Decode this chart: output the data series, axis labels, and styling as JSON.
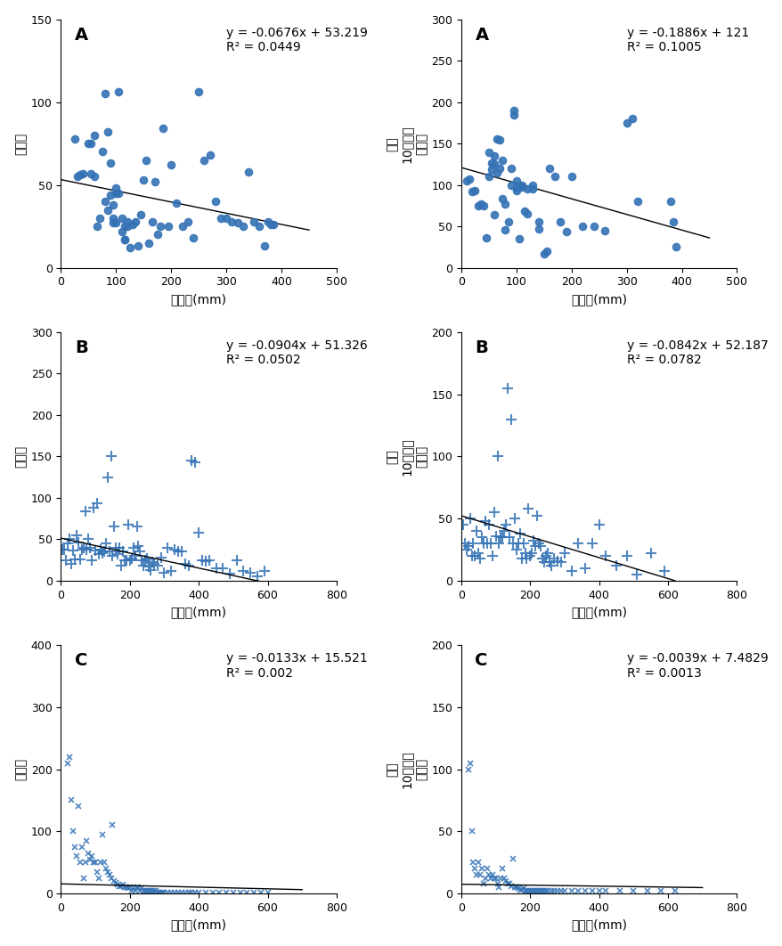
{
  "panels": [
    {
      "label": "A",
      "row": 0,
      "col": 0,
      "equation": "y = -0.0676x + 53.219",
      "r2": "R² = 0.0449",
      "slope": -0.0676,
      "intercept": 53.219,
      "xlim": [
        0,
        500
      ],
      "ylim": [
        0,
        150
      ],
      "xticks": [
        0,
        100,
        200,
        300,
        400,
        500
      ],
      "yticks": [
        0,
        50,
        100,
        150
      ],
      "xlabel": "강수량(mm)",
      "ylabel": "발생수",
      "marker": "o",
      "x_line_start": 0,
      "x_line_end": 450,
      "scatter_x": [
        25,
        30,
        35,
        40,
        50,
        55,
        55,
        60,
        60,
        65,
        70,
        75,
        80,
        80,
        85,
        85,
        90,
        90,
        95,
        95,
        95,
        100,
        100,
        100,
        105,
        105,
        110,
        110,
        115,
        115,
        115,
        120,
        120,
        125,
        130,
        135,
        140,
        145,
        150,
        155,
        160,
        165,
        170,
        175,
        180,
        185,
        195,
        200,
        210,
        220,
        230,
        240,
        250,
        260,
        270,
        280,
        290,
        300,
        310,
        320,
        330,
        340,
        350,
        360,
        370,
        375,
        380,
        385
      ],
      "scatter_y": [
        78,
        55,
        56,
        57,
        75,
        75,
        57,
        55,
        80,
        25,
        30,
        70,
        105,
        40,
        35,
        82,
        44,
        63,
        38,
        30,
        27,
        45,
        48,
        27,
        106,
        45,
        22,
        30,
        17,
        25,
        17,
        28,
        25,
        12,
        26,
        28,
        13,
        32,
        53,
        65,
        15,
        28,
        52,
        20,
        25,
        84,
        25,
        62,
        39,
        25,
        28,
        18,
        106,
        65,
        68,
        40,
        30,
        30,
        28,
        27,
        25,
        58,
        28,
        25,
        13,
        28,
        26,
        26
      ]
    },
    {
      "label": "A",
      "row": 0,
      "col": 1,
      "equation": "y = -0.1886x + 121",
      "r2": "R² = 0.1005",
      "slope": -0.1886,
      "intercept": 121,
      "xlim": [
        0,
        500
      ],
      "ylim": [
        0,
        300
      ],
      "xticks": [
        0,
        100,
        200,
        300,
        400,
        500
      ],
      "yticks": [
        0,
        50,
        100,
        150,
        200,
        250,
        300
      ],
      "xlabel": "강수량(mm)",
      "ylabel": "인구\n10만명당\n발생률",
      "marker": "o",
      "x_line_start": 0,
      "x_line_end": 450,
      "scatter_x": [
        10,
        15,
        20,
        25,
        30,
        35,
        40,
        45,
        50,
        50,
        55,
        55,
        60,
        60,
        60,
        65,
        65,
        70,
        70,
        75,
        75,
        80,
        80,
        85,
        90,
        90,
        95,
        95,
        100,
        100,
        100,
        105,
        110,
        110,
        115,
        120,
        120,
        130,
        130,
        140,
        140,
        150,
        155,
        160,
        170,
        180,
        190,
        200,
        220,
        240,
        260,
        300,
        310,
        320,
        380,
        385,
        390
      ],
      "scatter_y": [
        105,
        107,
        92,
        93,
        75,
        77,
        75,
        36,
        139,
        110,
        119,
        126,
        125,
        135,
        64,
        155,
        115,
        154,
        120,
        130,
        83,
        46,
        77,
        56,
        120,
        100,
        190,
        185,
        105,
        96,
        93,
        35,
        100,
        97,
        68,
        95,
        65,
        95,
        100,
        55,
        47,
        17,
        20,
        120,
        110,
        55,
        44,
        110,
        50,
        50,
        45,
        175,
        180,
        80,
        80,
        55,
        25
      ]
    },
    {
      "label": "B",
      "row": 1,
      "col": 0,
      "equation": "y = -0.0904x + 51.326",
      "r2": "R² = 0.0502",
      "slope": -0.0904,
      "intercept": 51.326,
      "xlim": [
        0,
        800
      ],
      "ylim": [
        0,
        300
      ],
      "xticks": [
        0,
        200,
        400,
        600,
        800
      ],
      "yticks": [
        0,
        50,
        100,
        150,
        200,
        250,
        300
      ],
      "xlabel": "강수량(mm)",
      "ylabel": "발생수",
      "marker": "+",
      "x_line_start": 0,
      "x_line_end": 580,
      "scatter_x": [
        5,
        10,
        15,
        20,
        25,
        30,
        35,
        40,
        45,
        50,
        55,
        60,
        65,
        70,
        75,
        80,
        85,
        90,
        95,
        100,
        105,
        110,
        115,
        120,
        125,
        130,
        135,
        140,
        145,
        150,
        155,
        160,
        165,
        170,
        175,
        180,
        185,
        190,
        195,
        200,
        205,
        210,
        215,
        220,
        225,
        230,
        235,
        240,
        245,
        250,
        255,
        260,
        265,
        270,
        280,
        290,
        300,
        310,
        320,
        330,
        340,
        350,
        360,
        370,
        380,
        390,
        400,
        410,
        420,
        430,
        450,
        470,
        490,
        510,
        530,
        550,
        570,
        590
      ],
      "scatter_y": [
        37,
        38,
        25,
        45,
        50,
        20,
        36,
        26,
        55,
        46,
        26,
        37,
        40,
        84,
        37,
        50,
        40,
        25,
        88,
        36,
        93,
        32,
        37,
        33,
        35,
        45,
        125,
        35,
        150,
        30,
        65,
        40,
        32,
        40,
        18,
        35,
        25,
        25,
        68,
        25,
        27,
        40,
        30,
        65,
        42,
        35,
        25,
        18,
        25,
        27,
        17,
        13,
        22,
        20,
        18,
        28,
        10,
        40,
        12,
        38,
        35,
        35,
        20,
        18,
        145,
        143,
        58,
        25,
        23,
        25,
        15,
        15,
        8,
        25,
        12,
        9,
        5,
        12
      ]
    },
    {
      "label": "B",
      "row": 1,
      "col": 1,
      "equation": "y = -0.0842x + 52.187",
      "r2": "R² = 0.0782",
      "slope": -0.0842,
      "intercept": 52.187,
      "xlim": [
        0,
        800
      ],
      "ylim": [
        0,
        200
      ],
      "xticks": [
        0,
        200,
        400,
        600,
        800
      ],
      "yticks": [
        0,
        50,
        100,
        150,
        200
      ],
      "xlabel": "강수량(mm)",
      "ylabel": "인구\n10만명당\n발생률",
      "marker": "+",
      "x_line_start": 0,
      "x_line_end": 620,
      "scatter_x": [
        5,
        10,
        15,
        20,
        25,
        30,
        35,
        40,
        45,
        50,
        55,
        60,
        65,
        70,
        75,
        80,
        85,
        90,
        95,
        100,
        105,
        110,
        115,
        120,
        125,
        130,
        135,
        140,
        145,
        150,
        155,
        160,
        165,
        170,
        175,
        180,
        185,
        190,
        195,
        200,
        205,
        210,
        215,
        220,
        225,
        230,
        235,
        240,
        245,
        250,
        255,
        260,
        270,
        280,
        290,
        300,
        320,
        340,
        360,
        380,
        400,
        420,
        450,
        480,
        510,
        550,
        590
      ],
      "scatter_y": [
        45,
        30,
        25,
        28,
        50,
        20,
        30,
        20,
        40,
        22,
        18,
        35,
        30,
        48,
        30,
        45,
        30,
        20,
        55,
        36,
        100,
        30,
        35,
        35,
        40,
        45,
        155,
        35,
        130,
        30,
        50,
        25,
        30,
        38,
        18,
        30,
        22,
        18,
        58,
        20,
        22,
        32,
        28,
        52,
        30,
        28,
        18,
        15,
        20,
        22,
        15,
        12,
        18,
        16,
        15,
        22,
        8,
        30,
        10,
        30,
        45,
        20,
        12,
        20,
        5,
        22,
        8
      ]
    },
    {
      "label": "C",
      "row": 2,
      "col": 0,
      "equation": "y = -0.0133x + 15.521",
      "r2": "R² = 0.002",
      "slope": -0.0133,
      "intercept": 15.521,
      "xlim": [
        0,
        800
      ],
      "ylim": [
        0,
        400
      ],
      "xticks": [
        0,
        200,
        400,
        600,
        800
      ],
      "yticks": [
        0,
        100,
        200,
        300,
        400
      ],
      "xlabel": "강수량(mm)",
      "ylabel": "발생수",
      "marker": "x",
      "x_line_start": 0,
      "x_line_end": 700,
      "scatter_x": [
        20,
        25,
        30,
        35,
        40,
        45,
        50,
        55,
        60,
        65,
        70,
        75,
        80,
        85,
        90,
        95,
        100,
        105,
        110,
        115,
        120,
        125,
        130,
        135,
        140,
        145,
        150,
        155,
        160,
        165,
        170,
        175,
        180,
        185,
        190,
        195,
        200,
        205,
        210,
        215,
        220,
        225,
        230,
        235,
        240,
        245,
        250,
        255,
        260,
        265,
        270,
        275,
        280,
        285,
        290,
        295,
        300,
        310,
        320,
        330,
        340,
        350,
        360,
        370,
        380,
        390,
        400,
        420,
        440,
        460,
        480,
        500,
        520,
        540,
        560,
        580,
        600
      ],
      "scatter_y": [
        210,
        220,
        150,
        100,
        75,
        60,
        140,
        50,
        75,
        25,
        50,
        85,
        65,
        55,
        60,
        50,
        50,
        35,
        25,
        50,
        95,
        50,
        40,
        35,
        30,
        25,
        110,
        20,
        18,
        15,
        12,
        12,
        15,
        10,
        10,
        8,
        10,
        5,
        8,
        5,
        10,
        8,
        5,
        8,
        5,
        5,
        5,
        5,
        5,
        5,
        5,
        5,
        2,
        2,
        2,
        2,
        2,
        2,
        2,
        2,
        2,
        2,
        2,
        2,
        2,
        2,
        2,
        2,
        2,
        2,
        2,
        2,
        2,
        2,
        2,
        2,
        2
      ]
    },
    {
      "label": "C",
      "row": 2,
      "col": 1,
      "equation": "y = -0.0039x + 7.4829",
      "r2": "R² = 0.0013",
      "slope": -0.0039,
      "intercept": 7.4829,
      "xlim": [
        0,
        800
      ],
      "ylim": [
        0,
        200
      ],
      "xticks": [
        0,
        200,
        400,
        600,
        800
      ],
      "yticks": [
        0,
        50,
        100,
        150,
        200
      ],
      "xlabel": "강수량(mm)",
      "ylabel": "인구\n10만명당\n발생률",
      "marker": "x",
      "x_line_start": 0,
      "x_line_end": 700,
      "scatter_x": [
        20,
        25,
        30,
        35,
        40,
        45,
        50,
        55,
        60,
        65,
        70,
        75,
        80,
        85,
        90,
        95,
        100,
        105,
        110,
        115,
        120,
        125,
        130,
        135,
        140,
        145,
        150,
        155,
        160,
        165,
        170,
        175,
        180,
        185,
        190,
        195,
        200,
        205,
        210,
        215,
        220,
        225,
        230,
        235,
        240,
        245,
        250,
        260,
        270,
        280,
        290,
        300,
        320,
        340,
        360,
        380,
        400,
        420,
        460,
        500,
        540,
        580,
        620
      ],
      "scatter_y": [
        100,
        105,
        50,
        25,
        20,
        15,
        25,
        15,
        20,
        8,
        12,
        20,
        15,
        12,
        15,
        12,
        12,
        8,
        5,
        12,
        20,
        12,
        10,
        8,
        8,
        6,
        28,
        5,
        5,
        4,
        3,
        3,
        4,
        2,
        2,
        2,
        2,
        2,
        2,
        2,
        2,
        2,
        2,
        2,
        2,
        2,
        2,
        2,
        2,
        2,
        2,
        2,
        2,
        2,
        2,
        2,
        2,
        2,
        2,
        2,
        2,
        2,
        2
      ]
    }
  ],
  "dot_color": "#3472b5",
  "line_color": "black",
  "label_fontsize": 14,
  "eq_fontsize": 10,
  "axis_label_fontsize": 10,
  "tick_fontsize": 9
}
